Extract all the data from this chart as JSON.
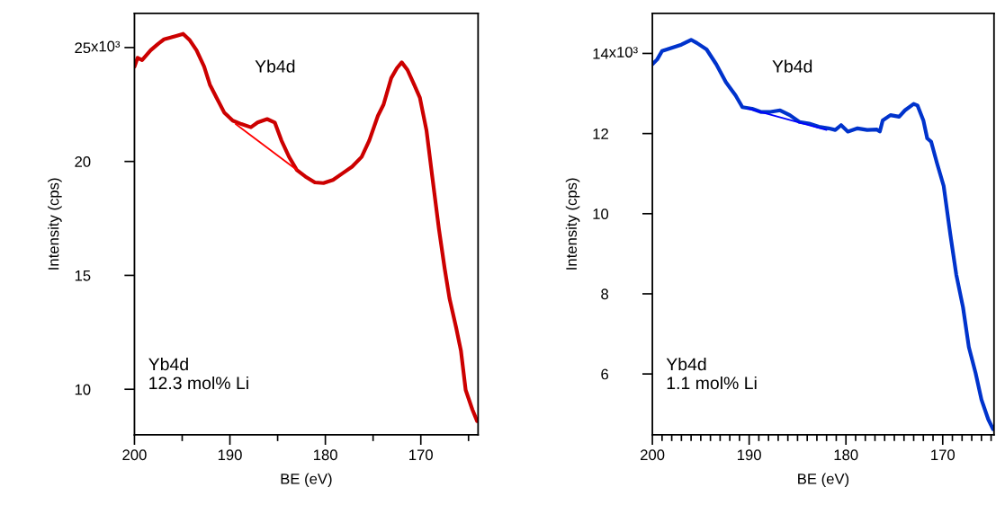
{
  "chart_data": [
    {
      "type": "line",
      "xlabel": "BE (eV)",
      "ylabel": "Intensity (cps)",
      "annotations": [
        "Yb4d",
        "Yb4d\n12.3 mol% Li",
        "x10³"
      ],
      "xlim": [
        200,
        164
      ],
      "ylim": [
        8,
        26.5
      ],
      "xticks": [
        200,
        {
          "value": 195,
          "label": null
        },
        190,
        {
          "value": 185,
          "label": null
        },
        180,
        {
          "value": 175,
          "label": null
        },
        170,
        {
          "value": 165,
          "label": null
        }
      ],
      "yticks": [
        10,
        15,
        20,
        25
      ],
      "series": [
        {
          "color": "#cc0000",
          "x": [
            200,
            199.67,
            199.2,
            198.3,
            197.5,
            196.9,
            195.7,
            194.9,
            194.2,
            193.5,
            192.7,
            192.1,
            191.4,
            190.6,
            189.7,
            188.8,
            187.8,
            187.1,
            186.1,
            185.3,
            184.6,
            183.8,
            183.0,
            182.1,
            181.1,
            180.2,
            179.2,
            178.2,
            177.2,
            176.2,
            175.4,
            174.5,
            173.9,
            173.1,
            172.5,
            172.0,
            171.4,
            170.7,
            170.1,
            169.4,
            168.8,
            168.1,
            167.5,
            167.0,
            166.3,
            165.8,
            165.3,
            164.6,
            164.1
          ],
          "values": [
            24.16,
            24.55,
            24.45,
            24.88,
            25.17,
            25.36,
            25.5,
            25.6,
            25.32,
            24.88,
            24.16,
            23.37,
            22.8,
            22.15,
            21.79,
            21.64,
            21.5,
            21.71,
            21.86,
            21.71,
            20.92,
            20.2,
            19.63,
            19.34,
            19.08,
            19.05,
            19.19,
            19.48,
            19.77,
            20.2,
            20.92,
            22.0,
            22.5,
            23.66,
            24.1,
            24.35,
            24.02,
            23.37,
            22.8,
            21.35,
            19.34,
            17.03,
            15.3,
            14.0,
            12.71,
            11.7,
            9.97,
            9.11,
            8.6
          ]
        },
        {
          "color": "#ff0000",
          "x": [
            189.4,
            183.0
          ],
          "values": [
            21.64,
            19.63
          ]
        }
      ]
    },
    {
      "type": "line",
      "xlabel": "BE (eV)",
      "ylabel": "Intensity (cps)",
      "annotations": [
        "Yb4d",
        "Yb4d\n1.1 mol% Li",
        "x10³"
      ],
      "xlim": [
        200,
        164.7
      ],
      "ylim": [
        4.48,
        15.0
      ],
      "xticks": [
        200,
        {
          "value": 199,
          "label": null
        },
        {
          "value": 198,
          "label": null
        },
        {
          "value": 197,
          "label": null
        },
        {
          "value": 196,
          "label": null
        },
        {
          "value": 195,
          "label": null
        },
        {
          "value": 194,
          "label": null
        },
        {
          "value": 193,
          "label": null
        },
        {
          "value": 192,
          "label": null
        },
        {
          "value": 191,
          "label": null
        },
        190,
        {
          "value": 189,
          "label": null
        },
        {
          "value": 188,
          "label": null
        },
        {
          "value": 187,
          "label": null
        },
        {
          "value": 186,
          "label": null
        },
        {
          "value": 185,
          "label": null
        },
        {
          "value": 184,
          "label": null
        },
        {
          "value": 183,
          "label": null
        },
        {
          "value": 182,
          "label": null
        },
        {
          "value": 181,
          "label": null
        },
        180,
        {
          "value": 179,
          "label": null
        },
        {
          "value": 178,
          "label": null
        },
        {
          "value": 177,
          "label": null
        },
        {
          "value": 176,
          "label": null
        },
        {
          "value": 175,
          "label": null
        },
        {
          "value": 174,
          "label": null
        },
        {
          "value": 173,
          "label": null
        },
        {
          "value": 172,
          "label": null
        },
        {
          "value": 171,
          "label": null
        },
        170,
        {
          "value": 169,
          "label": null
        },
        {
          "value": 168,
          "label": null
        },
        {
          "value": 167,
          "label": null
        },
        {
          "value": 166,
          "label": null
        },
        {
          "value": 165,
          "label": null
        }
      ],
      "yticks": [
        6,
        8,
        10,
        12,
        14
      ],
      "series": [
        {
          "color": "#0033cc",
          "x": [
            200,
            199.5,
            199.0,
            198.0,
            197.0,
            196.0,
            195.4,
            194.4,
            193.4,
            192.4,
            191.4,
            190.7,
            189.7,
            188.8,
            187.8,
            186.8,
            185.8,
            184.8,
            183.8,
            182.8,
            181.8,
            181.1,
            180.5,
            179.8,
            178.8,
            177.8,
            176.8,
            176.5,
            176.2,
            175.4,
            174.5,
            173.9,
            173.0,
            172.6,
            172.0,
            171.6,
            171.2,
            170.6,
            169.9,
            169.2,
            168.6,
            167.9,
            167.3,
            166.6,
            166.0,
            165.3,
            164.8
          ],
          "values": [
            13.73,
            13.85,
            14.06,
            14.14,
            14.22,
            14.34,
            14.26,
            14.1,
            13.73,
            13.28,
            12.95,
            12.66,
            12.62,
            12.54,
            12.54,
            12.58,
            12.46,
            12.29,
            12.25,
            12.17,
            12.13,
            12.09,
            12.21,
            12.05,
            12.13,
            12.09,
            12.1,
            12.05,
            12.33,
            12.46,
            12.42,
            12.58,
            12.74,
            12.7,
            12.33,
            11.88,
            11.8,
            11.27,
            10.69,
            9.46,
            8.48,
            7.66,
            6.67,
            6.02,
            5.36,
            4.87,
            4.62
          ]
        },
        {
          "color": "#0000ff",
          "x": [
            190.1,
            182.0
          ],
          "values": [
            12.62,
            12.09
          ]
        }
      ]
    }
  ]
}
